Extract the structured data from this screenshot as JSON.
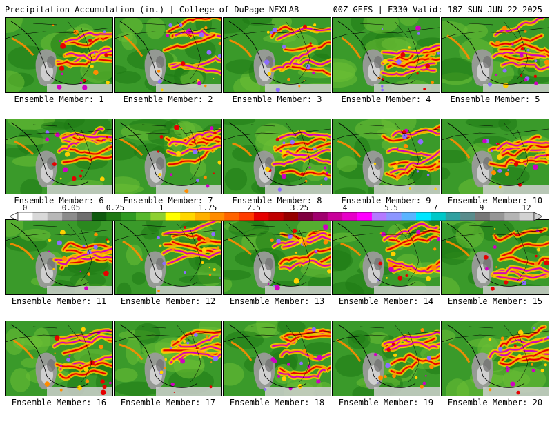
{
  "header": {
    "title_left": "Precipitation Accumulation (in.) | College of DuPage NEXLAB",
    "title_right": "00Z GEFS | F330 Valid: 18Z SUN JUN 22 2025"
  },
  "panels": [
    {
      "label": "Ensemble Member: 1"
    },
    {
      "label": "Ensemble Member: 2"
    },
    {
      "label": "Ensemble Member: 3"
    },
    {
      "label": "Ensemble Member: 4"
    },
    {
      "label": "Ensemble Member: 5"
    },
    {
      "label": "Ensemble Member: 6"
    },
    {
      "label": "Ensemble Member: 7"
    },
    {
      "label": "Ensemble Member: 8"
    },
    {
      "label": "Ensemble Member: 9"
    },
    {
      "label": "Ensemble Member: 10"
    },
    {
      "label": "Ensemble Member: 11"
    },
    {
      "label": "Ensemble Member: 12"
    },
    {
      "label": "Ensemble Member: 13"
    },
    {
      "label": "Ensemble Member: 14"
    },
    {
      "label": "Ensemble Member: 15"
    },
    {
      "label": "Ensemble Member: 16"
    },
    {
      "label": "Ensemble Member: 17"
    },
    {
      "label": "Ensemble Member: 18"
    },
    {
      "label": "Ensemble Member: 19"
    },
    {
      "label": "Ensemble Member: 20"
    }
  ],
  "colorbar": {
    "labels": [
      "0",
      "0.05",
      "0.25",
      "1",
      "1.75",
      "2.5",
      "3.25",
      "4",
      "5.5",
      "7",
      "9",
      "12"
    ],
    "colors": [
      "#ffffff",
      "#d9d9d9",
      "#b8b8b8",
      "#8c8c8c",
      "#6e6e6e",
      "#0f5a0f",
      "#1e7a14",
      "#2f9a22",
      "#56b82c",
      "#8ed030",
      "#ffff00",
      "#ffd700",
      "#ffb000",
      "#ff8c00",
      "#ff6400",
      "#ff3c00",
      "#e60000",
      "#c00000",
      "#960000",
      "#800040",
      "#a0006e",
      "#c8009a",
      "#e600c8",
      "#ff00ff",
      "#b47aff",
      "#8c96ff",
      "#5ab4ff",
      "#00e6ff",
      "#00c8c8",
      "#30a0a0",
      "#5a8c8c",
      "#787878",
      "#969696",
      "#b4b4b4",
      "#d2d2d2"
    ]
  },
  "map_colors": {
    "green_dark": "#1e7a14",
    "green": "#3a9a2a",
    "green_light": "#6cc034",
    "yellow": "#ffd000",
    "orange": "#ff8c00",
    "red": "#e60000",
    "magenta": "#d000c0",
    "purple": "#8c6cff",
    "grey_dark": "#6e6e6e",
    "grey": "#9a9a9a",
    "grey_light": "#cfcfcf"
  }
}
